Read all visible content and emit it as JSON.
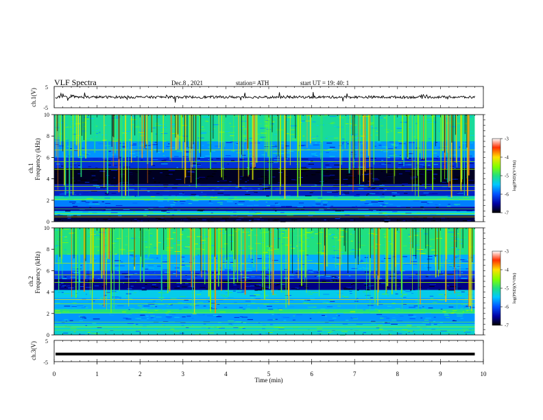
{
  "header": {
    "title": "VLF  Spectra",
    "date": "Dec.8  , 2021",
    "station": "station= ATH",
    "start": "start  UT  =    19: 40: 1"
  },
  "chart_data": [
    {
      "type": "line",
      "panel": "ch1-waveform",
      "ylabel": "ch.1(V)",
      "ylim": [
        -5,
        5
      ],
      "ytick_labels": [
        "5",
        "-5"
      ],
      "approx_level_V": 0,
      "color": "#000000"
    },
    {
      "type": "heatmap",
      "panel": "ch1-spectrogram",
      "ylabel_top": "ch.1",
      "ylabel": "Frequency  (kHz)",
      "ylim": [
        0,
        10
      ],
      "ytick_labels": [
        "0",
        "2",
        "4",
        "6",
        "8",
        "10"
      ],
      "colorbar": {
        "label": "log(PSD)(V²/Hz)",
        "ticks": [
          "-3",
          "-4",
          "-5",
          "-6",
          "-7"
        ],
        "range": [
          -7,
          -3
        ]
      },
      "bands": [
        {
          "fmin": 0.0,
          "fmax": 0.6,
          "level": -6.8
        },
        {
          "fmin": 0.6,
          "fmax": 1.0,
          "level": -5.4
        },
        {
          "fmin": 1.0,
          "fmax": 1.4,
          "level": -6.5
        },
        {
          "fmin": 1.4,
          "fmax": 2.0,
          "level": -5.8
        },
        {
          "fmin": 2.0,
          "fmax": 2.4,
          "level": -5.2
        },
        {
          "fmin": 2.4,
          "fmax": 3.5,
          "level": -6.3
        },
        {
          "fmin": 3.5,
          "fmax": 5.0,
          "level": -6.9
        },
        {
          "fmin": 5.0,
          "fmax": 6.0,
          "level": -6.2
        },
        {
          "fmin": 6.0,
          "fmax": 7.5,
          "level": -5.7
        },
        {
          "fmin": 7.5,
          "fmax": 10.0,
          "level": -5.1
        }
      ]
    },
    {
      "type": "heatmap",
      "panel": "ch2-spectrogram",
      "ylabel_top": "ch.2",
      "ylabel": "Frequency  (kHz)",
      "ylim": [
        0,
        10
      ],
      "ytick_labels": [
        "0",
        "2",
        "4",
        "6",
        "8",
        "10"
      ],
      "colorbar": {
        "label": "log(PSD)(V²/Hz)",
        "ticks": [
          "-3",
          "-4",
          "-5",
          "-6",
          "-7"
        ],
        "range": [
          -7,
          -3
        ]
      },
      "bands": [
        {
          "fmin": 0.0,
          "fmax": 1.0,
          "level": -5.3
        },
        {
          "fmin": 1.0,
          "fmax": 2.0,
          "level": -5.7
        },
        {
          "fmin": 2.0,
          "fmax": 2.4,
          "level": -5.0
        },
        {
          "fmin": 2.4,
          "fmax": 3.5,
          "level": -5.6
        },
        {
          "fmin": 3.5,
          "fmax": 4.2,
          "level": -5.4
        },
        {
          "fmin": 4.2,
          "fmax": 5.2,
          "level": -6.6
        },
        {
          "fmin": 5.2,
          "fmax": 6.0,
          "level": -6.1
        },
        {
          "fmin": 6.0,
          "fmax": 7.5,
          "level": -5.6
        },
        {
          "fmin": 7.5,
          "fmax": 10.0,
          "level": -5.0
        }
      ]
    },
    {
      "type": "line",
      "panel": "ch3-waveform",
      "ylabel": "ch.3(V)",
      "ylim": [
        -5,
        5
      ],
      "ytick_labels": [
        "5",
        "-5"
      ],
      "level_V": -1.4,
      "xlabel": "Time  (min)",
      "xlim": [
        0,
        10
      ],
      "xtick_labels": [
        "0",
        "1",
        "2",
        "3",
        "4",
        "5",
        "6",
        "7",
        "8",
        "9",
        "10"
      ],
      "data_end_min": 9.8
    }
  ]
}
